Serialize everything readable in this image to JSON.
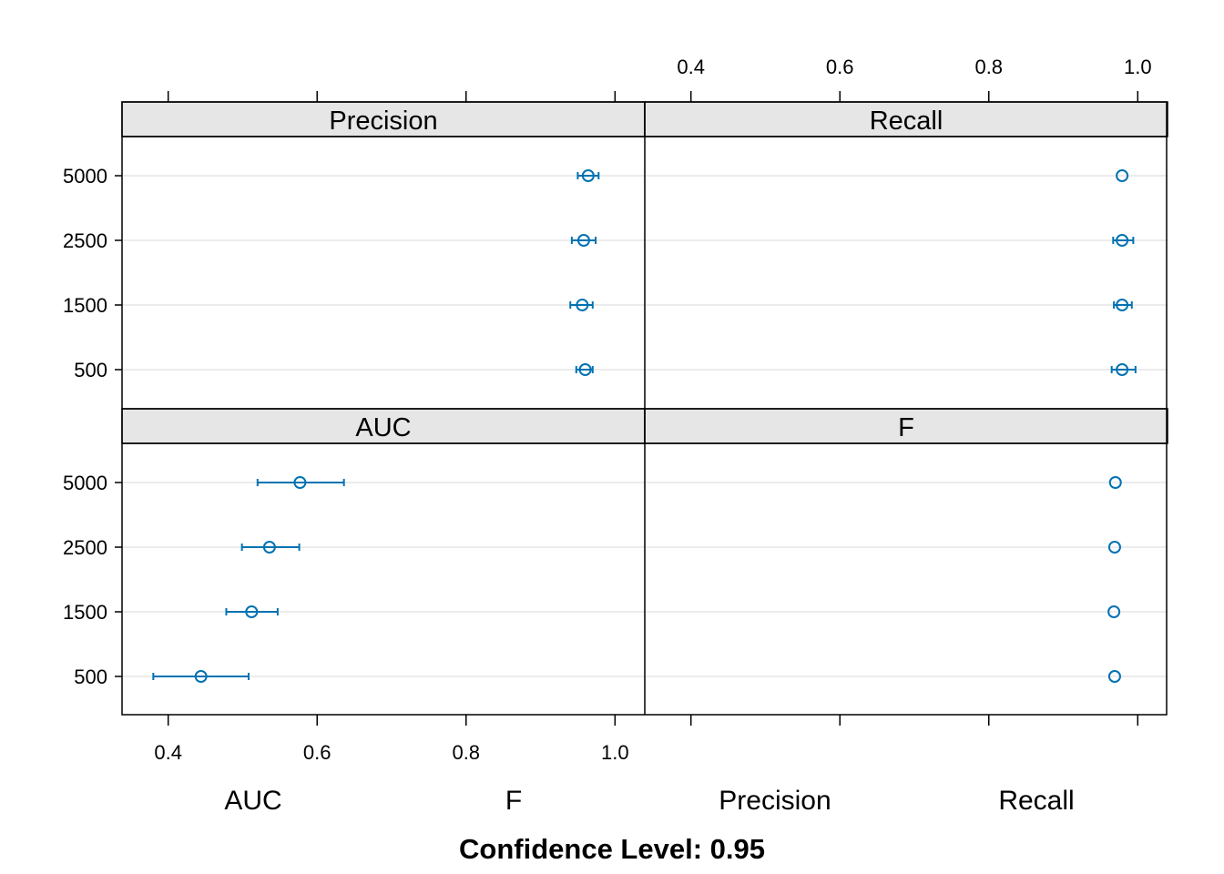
{
  "chart_data": {
    "type": "dotplot",
    "y_categories": [
      "500",
      "1500",
      "2500",
      "5000"
    ],
    "x_ticks": [
      0.4,
      0.6,
      0.8,
      1.0
    ],
    "x_tick_labels": [
      "0.4",
      "0.6",
      "0.8",
      "1.0"
    ],
    "xlim": [
      0.338,
      1.04
    ],
    "panels": [
      {
        "name": "Precision",
        "points": [
          {
            "category": "500",
            "estimate": 0.96,
            "lower": 0.948,
            "upper": 0.97
          },
          {
            "category": "1500",
            "estimate": 0.956,
            "lower": 0.94,
            "upper": 0.97
          },
          {
            "category": "2500",
            "estimate": 0.958,
            "lower": 0.942,
            "upper": 0.974
          },
          {
            "category": "5000",
            "estimate": 0.964,
            "lower": 0.95,
            "upper": 0.978
          }
        ]
      },
      {
        "name": "Recall",
        "points": [
          {
            "category": "500",
            "estimate": 0.979,
            "lower": 0.965,
            "upper": 0.997
          },
          {
            "category": "1500",
            "estimate": 0.979,
            "lower": 0.968,
            "upper": 0.992
          },
          {
            "category": "2500",
            "estimate": 0.979,
            "lower": 0.967,
            "upper": 0.994
          },
          {
            "category": "5000",
            "estimate": 0.979,
            "lower": 0.979,
            "upper": 0.979
          }
        ]
      },
      {
        "name": "AUC",
        "points": [
          {
            "category": "500",
            "estimate": 0.444,
            "lower": 0.38,
            "upper": 0.508
          },
          {
            "category": "1500",
            "estimate": 0.512,
            "lower": 0.478,
            "upper": 0.547
          },
          {
            "category": "2500",
            "estimate": 0.536,
            "lower": 0.499,
            "upper": 0.576
          },
          {
            "category": "5000",
            "estimate": 0.577,
            "lower": 0.52,
            "upper": 0.636
          }
        ]
      },
      {
        "name": "F",
        "points": [
          {
            "category": "500",
            "estimate": 0.969,
            "lower": 0.969,
            "upper": 0.969
          },
          {
            "category": "1500",
            "estimate": 0.968,
            "lower": 0.968,
            "upper": 0.968
          },
          {
            "category": "2500",
            "estimate": 0.969,
            "lower": 0.969,
            "upper": 0.969
          },
          {
            "category": "5000",
            "estimate": 0.97,
            "lower": 0.97,
            "upper": 0.97
          }
        ]
      }
    ],
    "bottom_labels": [
      "AUC",
      "F",
      "Precision",
      "Recall"
    ],
    "subtitle": "Confidence Level: 0.95",
    "grid": true,
    "colors": {
      "point": "#0072b2",
      "strip": "#e6e6e6",
      "grid": "#e6e6e6",
      "axis": "#000000"
    }
  }
}
